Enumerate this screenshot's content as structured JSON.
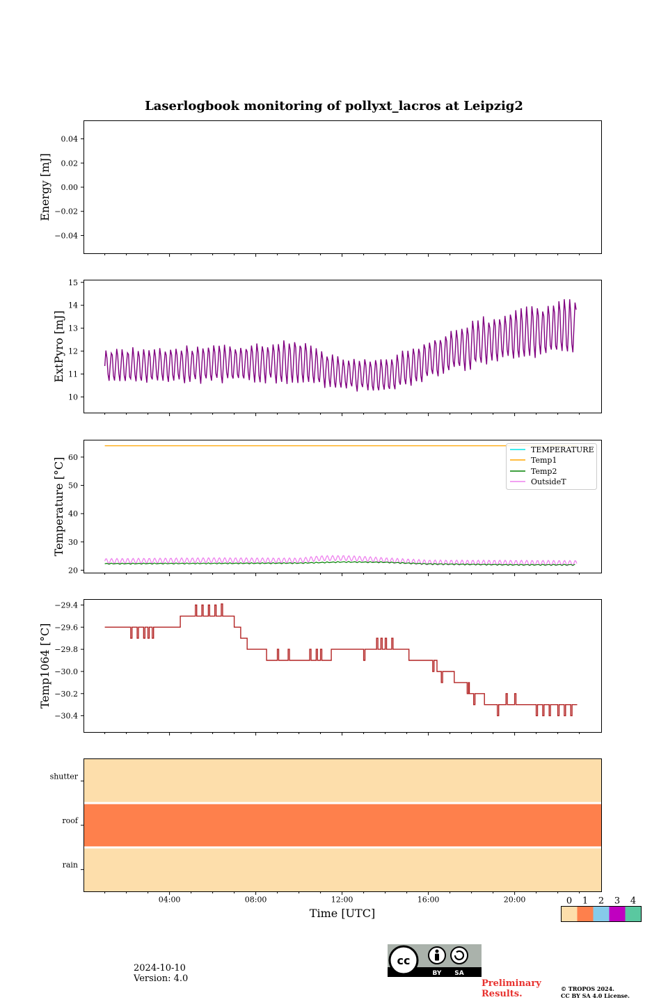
{
  "figure": {
    "title": "Laserlogbook monitoring of pollyxt_lacros at Leipzig2"
  },
  "footer": {
    "date": "2024-10-10",
    "version": "Version: 4.0",
    "preliminary_line1": "Preliminary",
    "preliminary_line2": "Results.",
    "copyright_line1": "© TROPOS 2024.",
    "copyright_line2": "CC BY SA 4.0 License.",
    "cc_labels": [
      "BY",
      "SA"
    ]
  },
  "chart_data": [
    {
      "type": "line",
      "ylabel": "Energy [mJ]",
      "ylim": [
        -0.055,
        0.055
      ],
      "yticks": [
        -0.04,
        -0.02,
        0.0,
        0.02,
        0.04
      ],
      "ytick_labels": [
        "−0.04",
        "−0.02",
        "0.00",
        "0.02",
        "0.04"
      ],
      "series": []
    },
    {
      "type": "line",
      "ylabel": "ExtPyro [mJ]",
      "ylim": [
        9.3,
        15.1
      ],
      "yticks": [
        10,
        11,
        12,
        13,
        14,
        15
      ],
      "ytick_labels": [
        "10",
        "11",
        "12",
        "13",
        "14",
        "15"
      ],
      "color": "#800080",
      "x_range": [
        1.0,
        22.9
      ],
      "trend_x": [
        1,
        4,
        7,
        10,
        12,
        14,
        16,
        18,
        20,
        22.9
      ],
      "trend_mid": [
        11.35,
        11.4,
        11.45,
        11.55,
        11.0,
        10.9,
        11.6,
        12.3,
        12.7,
        13.1
      ],
      "trend_amp": [
        0.75,
        0.8,
        0.85,
        0.95,
        0.7,
        0.75,
        0.9,
        1.05,
        1.15,
        1.25
      ]
    },
    {
      "type": "line",
      "ylabel": "Temperature [°C]",
      "ylim": [
        19.0,
        66.0
      ],
      "yticks": [
        20,
        30,
        40,
        50,
        60
      ],
      "ytick_labels": [
        "20",
        "30",
        "40",
        "50",
        "60"
      ],
      "legend": [
        "TEMPERATURE",
        "Temp1",
        "Temp2",
        "OutsideT"
      ],
      "legend_position": "top-right",
      "series": [
        {
          "name": "TEMPERATURE",
          "color": "#00e5e5",
          "x": [],
          "values": []
        },
        {
          "name": "Temp1",
          "color": "#ffa500",
          "x": [
            1,
            22.9
          ],
          "values": [
            64.0,
            64.0
          ]
        },
        {
          "name": "Temp2",
          "color": "#008000",
          "x": [
            1,
            6,
            10,
            12,
            14,
            16,
            20,
            22.9
          ],
          "values": [
            22.3,
            22.4,
            22.5,
            22.9,
            22.8,
            22.2,
            21.9,
            21.9
          ]
        },
        {
          "name": "OutsideT",
          "color": "#ee82ee",
          "x": [
            1,
            6,
            10,
            11,
            12,
            13,
            14,
            16,
            20,
            22.9
          ],
          "values": [
            23.2,
            23.5,
            23.4,
            24.2,
            24.3,
            24.0,
            23.5,
            22.7,
            22.6,
            22.5
          ],
          "amp": 0.9
        }
      ]
    },
    {
      "type": "line",
      "ylabel": "Temp1064 [°C]",
      "ylim": [
        -30.55,
        -29.35
      ],
      "yticks": [
        -29.4,
        -29.6,
        -29.8,
        -30.0,
        -30.2,
        -30.4
      ],
      "ytick_labels": [
        "−29.4",
        "−29.6",
        "−29.8",
        "−30.0",
        "−30.2",
        "−30.4"
      ],
      "color": "#b22222",
      "steps_x": [
        1.0,
        4.5,
        7.0,
        7.3,
        7.6,
        8.5,
        11.5,
        15.1,
        16.4,
        17.2,
        17.9,
        18.6,
        22.9
      ],
      "steps_y": [
        -29.6,
        -29.5,
        -29.6,
        -29.7,
        -29.8,
        -29.9,
        -29.8,
        -29.9,
        -30.0,
        -30.1,
        -30.2,
        -30.3,
        -30.4
      ],
      "spikes_x": [
        2.2,
        2.5,
        2.8,
        3.0,
        3.2,
        5.2,
        5.5,
        5.8,
        6.1,
        6.4,
        9.0,
        9.5,
        10.5,
        10.8,
        11.0,
        13.0,
        13.6,
        13.8,
        14.0,
        14.3,
        16.2,
        16.6,
        17.8,
        18.1,
        19.2,
        19.6,
        20.0,
        21.0,
        21.3,
        21.6,
        22.0,
        22.3,
        22.6
      ],
      "spikes_d": [
        -0.1,
        -0.1,
        -0.1,
        -0.1,
        -0.1,
        0.1,
        0.1,
        0.1,
        0.1,
        0.11,
        0.1,
        0.1,
        0.1,
        0.1,
        0.1,
        -0.1,
        0.1,
        0.1,
        0.1,
        0.1,
        -0.1,
        -0.1,
        -0.1,
        -0.1,
        -0.1,
        0.1,
        0.1,
        -0.1,
        -0.1,
        -0.1,
        -0.1,
        -0.1,
        -0.1
      ]
    },
    {
      "type": "heatmap",
      "xlabel": "Time [UTC]",
      "rows": [
        "shutter",
        "roof",
        "rain"
      ],
      "row_values": [
        0,
        1,
        0
      ],
      "xticks": [
        4,
        8,
        12,
        16,
        20
      ],
      "xtick_labels": [
        "04:00",
        "08:00",
        "12:00",
        "16:00",
        "20:00"
      ],
      "xlim": [
        0,
        24
      ],
      "colorbar": {
        "labels": [
          "0",
          "1",
          "2",
          "3",
          "4"
        ],
        "colors": [
          "#fddeab",
          "#fe804c",
          "#86cbea",
          "#c000c0",
          "#5ac8a0"
        ]
      }
    }
  ]
}
